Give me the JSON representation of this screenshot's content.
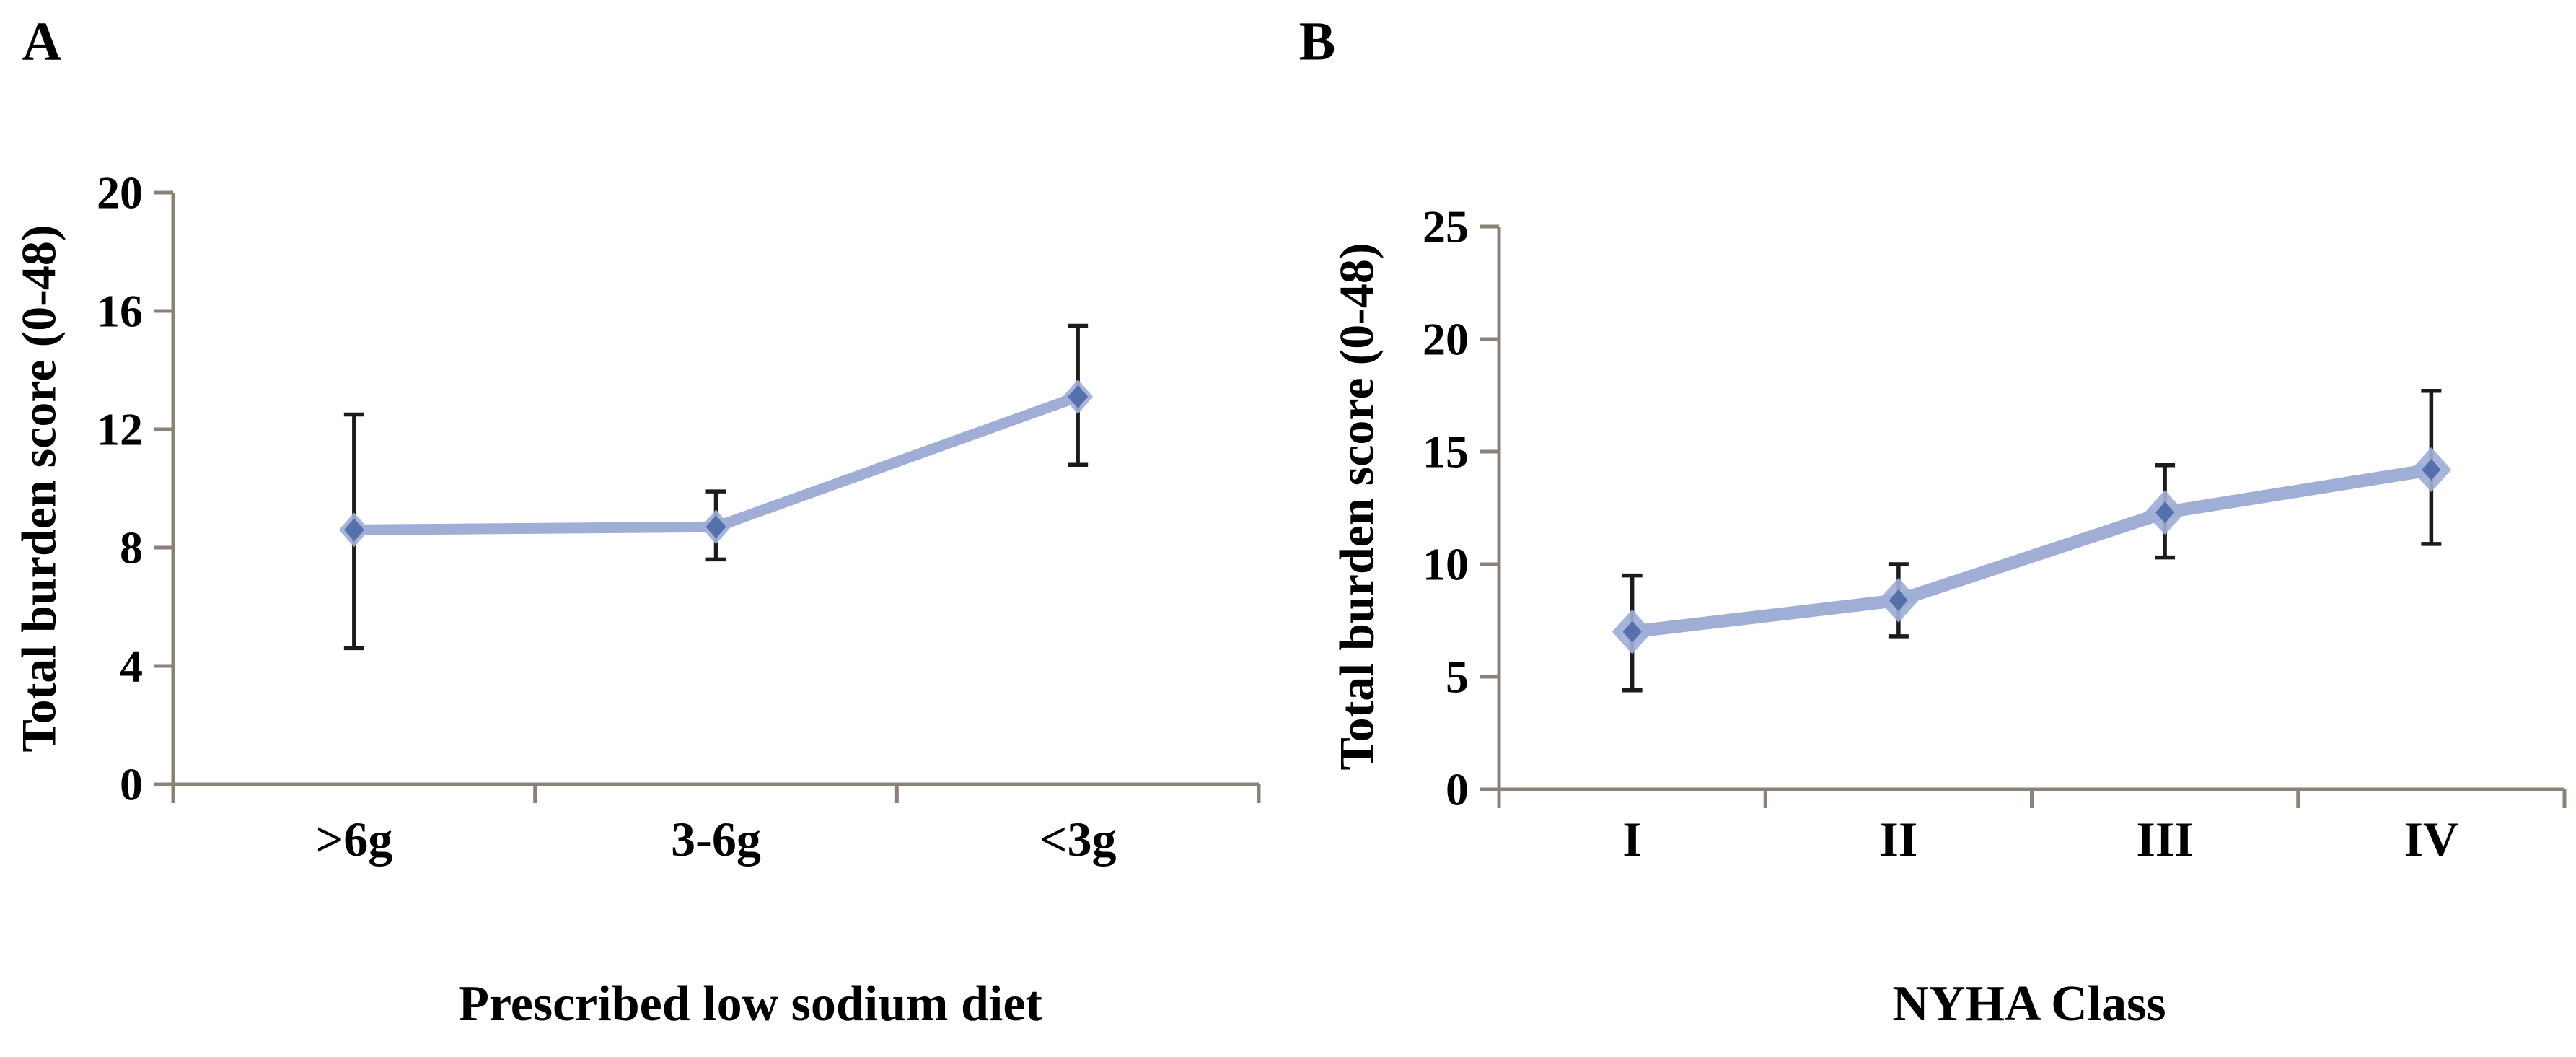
{
  "figure": {
    "background": "#ffffff",
    "axis_color": "#8b8277",
    "text_color": "#000000",
    "panels": [
      {
        "letter": "A",
        "y_title": "Total burden score (0-48)",
        "x_title": "Prescribed low sodium diet"
      },
      {
        "letter": "B",
        "y_title": "Total burden score (0-48)",
        "x_title": "NYHA Class"
      }
    ]
  },
  "chart_data": [
    {
      "type": "line",
      "panel": "A",
      "title": "",
      "xlabel": "Prescribed low sodium diet",
      "ylabel": "Total burden score (0-48)",
      "categories": [
        ">6g",
        "3-6g",
        "<3g"
      ],
      "series": [
        {
          "name": "Total burden score",
          "values": [
            8.6,
            8.7,
            13.1
          ],
          "error_low": [
            4.6,
            7.6,
            10.8
          ],
          "error_high": [
            12.5,
            9.9,
            15.5
          ]
        }
      ],
      "ylim": [
        0,
        20
      ],
      "yticks": [
        0,
        4,
        8,
        12,
        16,
        20
      ],
      "grid": false,
      "legend": "none",
      "marker": "diamond",
      "line_color": "#a0aed6",
      "marker_core_color": "#5570ab",
      "marker_halo_color": "#9fafd7",
      "error_bar_color": "#1b1b1b"
    },
    {
      "type": "line",
      "panel": "B",
      "title": "",
      "xlabel": "NYHA Class",
      "ylabel": "Total burden score (0-48)",
      "categories": [
        "I",
        "II",
        "III",
        "IV"
      ],
      "series": [
        {
          "name": "Total burden score",
          "values": [
            7.0,
            8.4,
            12.3,
            14.2
          ],
          "error_low": [
            4.4,
            6.8,
            10.3,
            10.9
          ],
          "error_high": [
            9.5,
            10.0,
            14.4,
            17.7
          ]
        }
      ],
      "ylim": [
        0,
        25
      ],
      "yticks": [
        0,
        5,
        10,
        15,
        20,
        25
      ],
      "grid": false,
      "legend": "none",
      "marker": "diamond",
      "line_color": "#a0aed6",
      "marker_core_color": "#5570ab",
      "marker_halo_color": "#9fafd7",
      "error_bar_color": "#1b1b1b"
    }
  ]
}
